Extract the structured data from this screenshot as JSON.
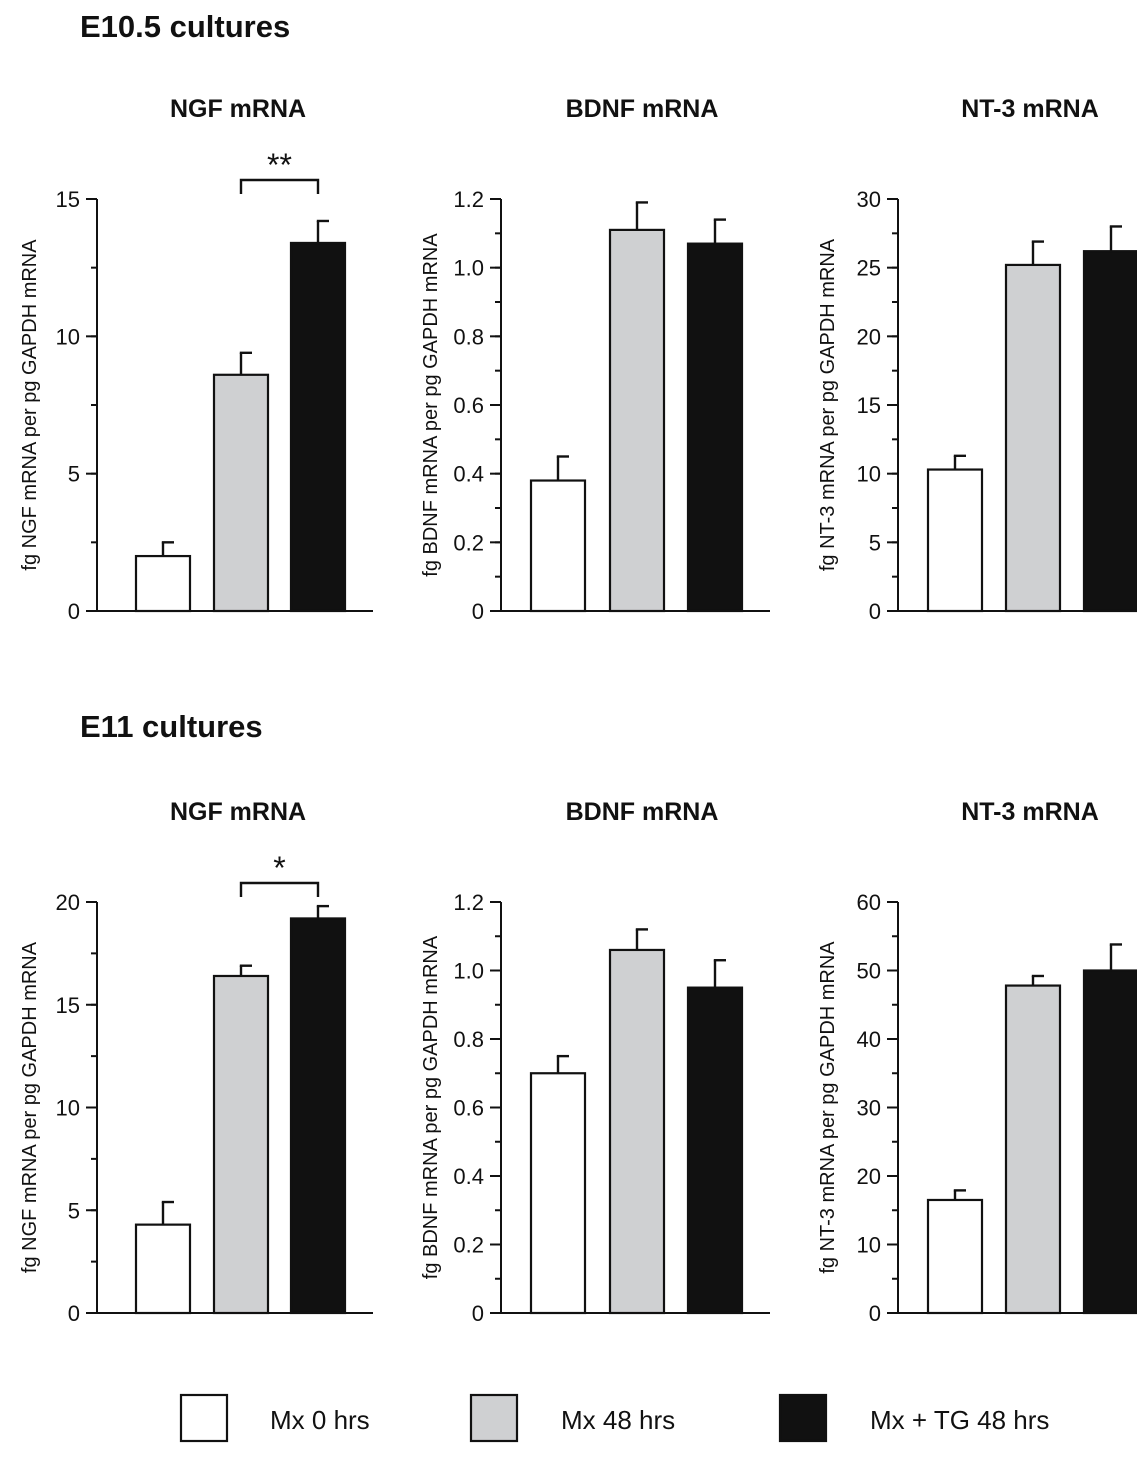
{
  "colors": {
    "Mx 0 hrs": "#ffffff",
    "Mx 48 hrs": "#cfd0d2",
    "Mx + TG 48 hrs": "#111111"
  },
  "legend": {
    "placement": "bottom",
    "items": [
      {
        "label": "Mx 0 hrs",
        "color": "#ffffff"
      },
      {
        "label": "Mx 48 hrs",
        "color": "#cfd0d2"
      },
      {
        "label": "Mx + TG 48 hrs",
        "color": "#111111"
      }
    ]
  },
  "sections": [
    {
      "title": "E10.5 cultures"
    },
    {
      "title": "E11 cultures"
    }
  ],
  "chart_data": [
    {
      "type": "bar",
      "section": "E10.5 cultures",
      "title": "NGF mRNA",
      "ylabel": "fg NGF mRNA per pg GAPDH mRNA",
      "categories": [
        "Mx 0 hrs",
        "Mx 48 hrs",
        "Mx + TG 48 hrs"
      ],
      "values": [
        2.0,
        8.6,
        13.4
      ],
      "errors": [
        0.5,
        0.8,
        0.8
      ],
      "ylim": [
        0,
        15
      ],
      "yticks": [
        0,
        5,
        10,
        15
      ],
      "yticklabels": [
        "0",
        "5",
        "10",
        "15"
      ],
      "minor_step": 2.5,
      "significance": {
        "between": [
          1,
          2
        ],
        "label": "**"
      }
    },
    {
      "type": "bar",
      "section": "E10.5 cultures",
      "title": "BDNF mRNA",
      "ylabel": "fg BDNF mRNA per pg GAPDH mRNA",
      "categories": [
        "Mx 0 hrs",
        "Mx 48 hrs",
        "Mx + TG 48 hrs"
      ],
      "values": [
        0.38,
        1.11,
        1.07
      ],
      "errors": [
        0.07,
        0.08,
        0.07
      ],
      "ylim": [
        0,
        1.2
      ],
      "yticks": [
        0,
        0.2,
        0.4,
        0.6,
        0.8,
        1.0,
        1.2
      ],
      "yticklabels": [
        "0",
        "0.2",
        "0.4",
        "0.6",
        "0.8",
        "1.0",
        "1.2"
      ],
      "minor_step": 0.1
    },
    {
      "type": "bar",
      "section": "E10.5 cultures",
      "title": "NT-3 mRNA",
      "ylabel": "fg NT-3 mRNA per pg GAPDH mRNA",
      "categories": [
        "Mx 0 hrs",
        "Mx 48 hrs",
        "Mx + TG 48 hrs"
      ],
      "values": [
        10.3,
        25.2,
        26.2
      ],
      "errors": [
        1.0,
        1.7,
        1.8
      ],
      "ylim": [
        0,
        30
      ],
      "yticks": [
        0,
        5,
        10,
        15,
        20,
        25,
        30
      ],
      "yticklabels": [
        "0",
        "5",
        "10",
        "15",
        "20",
        "25",
        "30"
      ],
      "minor_step": 2.5
    },
    {
      "type": "bar",
      "section": "E11 cultures",
      "title": "NGF mRNA",
      "ylabel": "fg NGF mRNA per pg GAPDH mRNA",
      "categories": [
        "Mx 0 hrs",
        "Mx 48 hrs",
        "Mx + TG 48 hrs"
      ],
      "values": [
        4.3,
        16.4,
        19.2
      ],
      "errors": [
        1.1,
        0.5,
        0.6
      ],
      "ylim": [
        0,
        20
      ],
      "yticks": [
        0,
        5,
        10,
        15,
        20
      ],
      "yticklabels": [
        "0",
        "5",
        "10",
        "15",
        "20"
      ],
      "minor_step": 2.5,
      "significance": {
        "between": [
          1,
          2
        ],
        "label": "*"
      }
    },
    {
      "type": "bar",
      "section": "E11 cultures",
      "title": "BDNF mRNA",
      "ylabel": "fg BDNF mRNA per pg GAPDH mRNA",
      "categories": [
        "Mx 0 hrs",
        "Mx 48 hrs",
        "Mx + TG 48 hrs"
      ],
      "values": [
        0.7,
        1.06,
        0.95
      ],
      "errors": [
        0.05,
        0.06,
        0.08
      ],
      "ylim": [
        0,
        1.2
      ],
      "yticks": [
        0,
        0.2,
        0.4,
        0.6,
        0.8,
        1.0,
        1.2
      ],
      "yticklabels": [
        "0",
        "0.2",
        "0.4",
        "0.6",
        "0.8",
        "1.0",
        "1.2"
      ],
      "minor_step": 0.1
    },
    {
      "type": "bar",
      "section": "E11 cultures",
      "title": "NT-3 mRNA",
      "ylabel": "fg NT-3 mRNA per pg GAPDH mRNA",
      "categories": [
        "Mx 0 hrs",
        "Mx 48 hrs",
        "Mx + TG 48 hrs"
      ],
      "values": [
        16.5,
        47.8,
        50.0
      ],
      "errors": [
        1.4,
        1.4,
        3.8
      ],
      "ylim": [
        0,
        60
      ],
      "yticks": [
        0,
        10,
        20,
        30,
        40,
        50,
        60
      ],
      "yticklabels": [
        "0",
        "10",
        "20",
        "30",
        "40",
        "50",
        "60"
      ],
      "minor_step": 5
    }
  ]
}
